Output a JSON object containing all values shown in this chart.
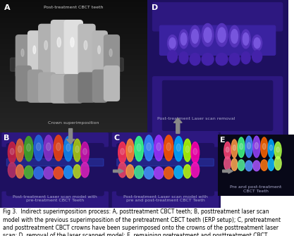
{
  "fig_width": 4.17,
  "fig_height": 3.35,
  "dpi": 100,
  "bg_color": "#000000",
  "outer_bg": "#ffffff",
  "panel_a_bg": "#1a1a1a",
  "panel_bd_bg": "#0d0530",
  "panel_e_bg": "#0a0a1a",
  "caption": "Fig 3.  Indirect superimposition process: A, posttreatment CBCT teeth; B, posttreatment laser scan\nmodel with the previous superimposition of the pretreatment CBCT teeth (ERP setup); C, pretreatment\nand posttreatment CBCT crowns have been superimposed onto the crowns of the posttreatment laser\nscan; D, removal of the laser scanned model; E, remaining pretreatment and posttreatment CBCT\nteeth, indirectly superimposed, allow for accurate comparison of the expected and true root positions.",
  "label_A": "A",
  "label_B": "B",
  "label_C": "C",
  "label_D": "D",
  "label_E": "E",
  "text_A_top": "Post-treatment CBCT teeth",
  "text_A_bot": "Crown superimposition",
  "text_B_bot": "Post-treatment Laser scan model with\npre-treatment CBCT Teeth",
  "text_C_bot": "Post-treatment Laser scan model with\npre and post-treatment CBCT Teeth",
  "text_D_bot": "Post-treatment Laser scan removal",
  "text_E_bot": "Pre and post-treatment\nCBCT Teeth",
  "label_color": "#ffffff",
  "caption_color": "#000000",
  "caption_fontsize": 5.5,
  "label_fontsize": 8.0,
  "subtext_fontsize": 4.5,
  "arrow_color": "#888888",
  "purple_dark": "#1e1060",
  "purple_mid": "#2d1880",
  "purple_light": "#4422aa",
  "purple_tooth": "#5533bb"
}
